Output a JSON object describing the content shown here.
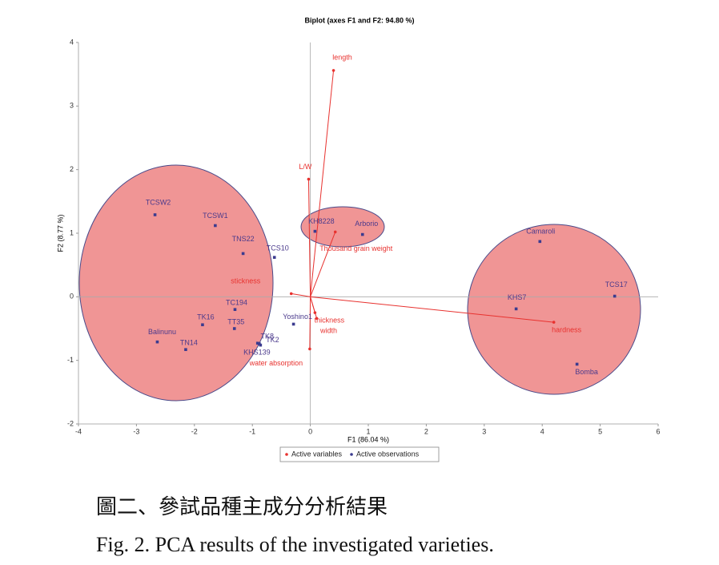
{
  "chart_data": {
    "type": "biplot",
    "title": "Biplot (axes F1 and F2: 94.80 %)",
    "xlabel": "F1 (86.04 %)",
    "ylabel": "F2 (8.77 %)",
    "xlim": [
      -4,
      6
    ],
    "ylim": [
      -2,
      4
    ],
    "xticks": [
      -4,
      -3,
      -2,
      -1,
      0,
      1,
      2,
      3,
      4,
      5,
      6
    ],
    "yticks": [
      -2,
      -1,
      0,
      1,
      2,
      3,
      4
    ],
    "legend": "bottom",
    "series": [
      {
        "name": "Active variables",
        "color": "#e8322f",
        "marker": "vector",
        "labels": [
          "length",
          "L/W",
          "Thousand grain weight",
          "stickness",
          "thickness",
          "width",
          "hardness",
          "water absorption"
        ],
        "x": [
          0.4,
          -0.03,
          0.43,
          -0.33,
          0.08,
          0.11,
          4.2,
          -0.01
        ],
        "y": [
          3.56,
          1.85,
          1.02,
          0.05,
          -0.25,
          -0.34,
          -0.4,
          -0.82
        ]
      },
      {
        "name": "Active observations",
        "color": "#3b3b8f",
        "marker": "point",
        "labels": [
          "TCSW2",
          "TCSW1",
          "TNS22",
          "TCS10",
          "KH8228",
          "Arborio",
          "TC194",
          "TK16",
          "TT35",
          "Yoshino1",
          "Balinunu",
          "TN14",
          "TK8",
          "TK2",
          "KHS139",
          "Camaroli",
          "TCS17",
          "KHS7",
          "Bomba"
        ],
        "x": [
          -2.68,
          -1.64,
          -1.16,
          -0.62,
          0.08,
          0.9,
          -1.3,
          -1.86,
          -1.31,
          -0.29,
          -2.64,
          -2.15,
          -0.91,
          -0.86,
          -0.88,
          3.96,
          5.25,
          3.55,
          4.6
        ],
        "y": [
          1.29,
          1.12,
          0.68,
          0.62,
          1.03,
          0.98,
          -0.2,
          -0.44,
          -0.5,
          -0.43,
          -0.71,
          -0.83,
          -0.73,
          -0.76,
          -0.74,
          0.87,
          0.01,
          -0.19,
          -1.06
        ]
      }
    ]
  },
  "caption": {
    "zh": "圖二、參試品種主成分分析結果",
    "en": "Fig. 2. PCA results of the investigated varieties."
  }
}
